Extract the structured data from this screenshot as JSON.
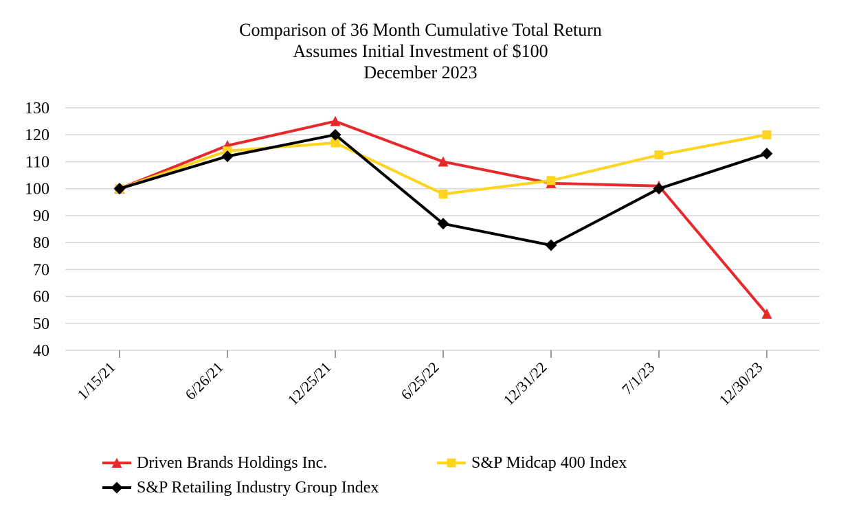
{
  "title": {
    "line1": "Comparison of 36 Month Cumulative Total Return",
    "line2": "Assumes Initial Investment of $100",
    "line3": "December 2023"
  },
  "chart_data": {
    "type": "line",
    "title": "Comparison of 36 Month Cumulative Total Return Assumes Initial Investment of $100 December 2023",
    "categories": [
      "1/15/21",
      "6/26/21",
      "12/25/21",
      "6/25/22",
      "12/31/22",
      "7/1/23",
      "12/30/23"
    ],
    "series": [
      {
        "name": "Driven Brands Holdings Inc.",
        "color": "#E8292C",
        "marker": "triangle",
        "values": [
          100,
          116,
          125,
          110,
          102,
          101,
          53.5
        ]
      },
      {
        "name": "S&P Midcap 400 Index",
        "color": "#FFD41E",
        "marker": "square",
        "values": [
          100,
          114,
          117,
          98,
          103,
          112.5,
          120
        ]
      },
      {
        "name": "S&P Retailing Industry Group Index",
        "color": "#000000",
        "marker": "diamond",
        "values": [
          100,
          112,
          120,
          87,
          79,
          100,
          113
        ]
      }
    ],
    "yticks": [
      40,
      50,
      60,
      70,
      80,
      90,
      100,
      110,
      120,
      130
    ],
    "ylim": [
      40,
      130
    ],
    "xlabel": "",
    "ylabel": "",
    "grid": "horizontal",
    "gridline_color": "#D9D9D9",
    "tick_color": "#7F7F7F",
    "legend_position": "bottom"
  },
  "legend": {
    "rows": [
      [
        0,
        1
      ],
      [
        2
      ]
    ]
  }
}
